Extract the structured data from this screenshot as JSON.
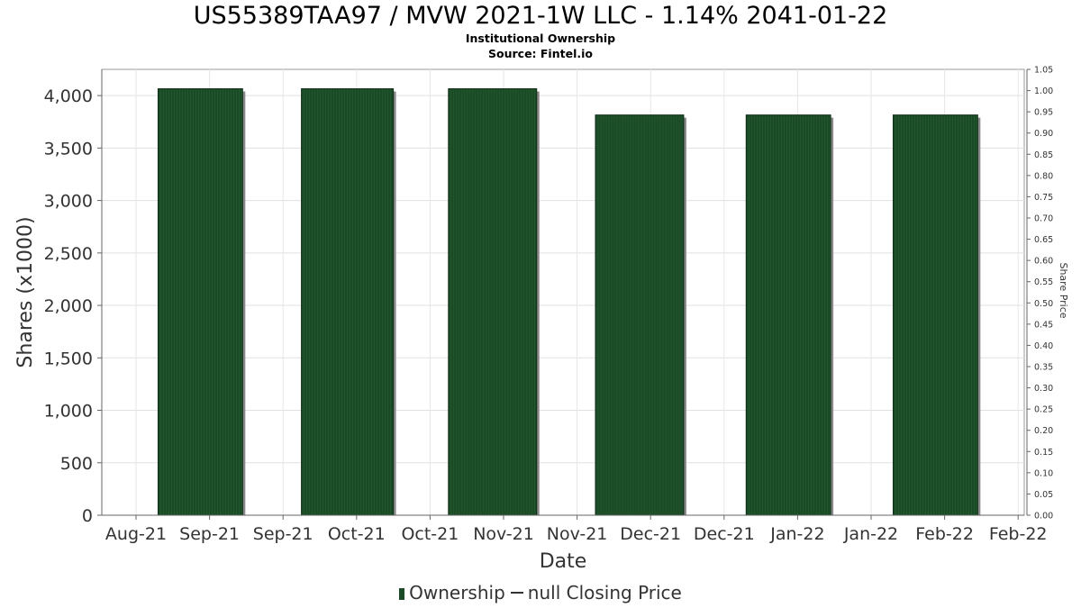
{
  "chart_data": {
    "type": "bar",
    "title": "US55389TAA97 / MVW 2021-1W LLC - 1.14% 2041-01-22",
    "subtitle_lines": [
      "Institutional Ownership",
      "Source: Fintel.io"
    ],
    "xlabel": "Date",
    "ylabel": "Shares (x1000)",
    "y2label": "Share Price",
    "x_tick_labels": [
      "Aug-21",
      "Sep-21",
      "Sep-21",
      "Oct-21",
      "Oct-21",
      "Nov-21",
      "Nov-21",
      "Dec-21",
      "Dec-21",
      "Jan-22",
      "Jan-22",
      "Feb-22",
      "Feb-22"
    ],
    "ylim": [
      0,
      4250
    ],
    "y_ticks": [
      0,
      500,
      1000,
      1500,
      2000,
      2500,
      3000,
      3500,
      4000
    ],
    "y_tick_labels": [
      "0",
      "500",
      "1,000",
      "1,500",
      "2,000",
      "2,500",
      "3,000",
      "3,500",
      "4,000"
    ],
    "y2lim": [
      0,
      1.05
    ],
    "y2_tick_labels": [
      "0.00",
      "0.05",
      "0.10",
      "0.15",
      "0.20",
      "0.25",
      "0.30",
      "0.35",
      "0.40",
      "0.45",
      "0.50",
      "0.55",
      "0.60",
      "0.65",
      "0.70",
      "0.75",
      "0.80",
      "0.85",
      "0.90",
      "0.95",
      "1.00",
      "1.05"
    ],
    "series": [
      {
        "name": "Ownership",
        "color": "#1b4a26",
        "bars": [
          {
            "value": 4065,
            "start_tick": 0.3,
            "end_tick": 1.45
          },
          {
            "value": 4065,
            "start_tick": 2.25,
            "end_tick": 3.5
          },
          {
            "value": 4065,
            "start_tick": 4.25,
            "end_tick": 5.45
          },
          {
            "value": 3815,
            "start_tick": 6.25,
            "end_tick": 7.45
          },
          {
            "value": 3815,
            "start_tick": 8.3,
            "end_tick": 9.45
          },
          {
            "value": 3815,
            "start_tick": 10.3,
            "end_tick": 11.45
          }
        ]
      },
      {
        "name": "null Closing Price",
        "color": "#333333",
        "values": []
      }
    ],
    "grid": true,
    "legend_position": "bottom"
  },
  "legend": {
    "ownership_label": "Ownership",
    "price_label": "null Closing Price"
  }
}
